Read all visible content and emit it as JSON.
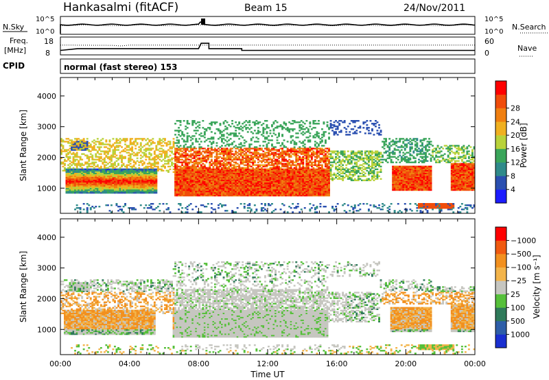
{
  "header": {
    "station": "Hankasalmi (fitACF)",
    "beam": "Beam 15",
    "date": "24/Nov/2011"
  },
  "noise_panel": {
    "left_label": "N.Sky",
    "left_ticks": [
      "10^5",
      "10^0"
    ],
    "right_ticks": [
      "10^5",
      "10^0"
    ],
    "right_label": "N.Search"
  },
  "freq_panel": {
    "left_label_1": "Freq.",
    "left_label_2": "[MHz]",
    "left_ticks": [
      "18",
      "8"
    ],
    "right_ticks": [
      "60",
      "0"
    ],
    "right_label": "Nave",
    "freq_series": [
      [
        0,
        10.5
      ],
      [
        1,
        11.5
      ],
      [
        8,
        11.5
      ],
      [
        8.15,
        14.5
      ],
      [
        8.6,
        14.5
      ],
      [
        8.6,
        11.5
      ],
      [
        10.5,
        11.5
      ],
      [
        10.5,
        10.5
      ],
      [
        24,
        10.5
      ]
    ],
    "nave_series": [
      [
        0,
        33
      ],
      [
        3,
        32
      ],
      [
        3.5,
        30
      ],
      [
        4,
        33
      ],
      [
        24,
        33
      ]
    ]
  },
  "cpid": {
    "label": "CPID",
    "value": "normal (fast stereo) 153"
  },
  "chart_data": [
    {
      "type": "heatmap",
      "title": "",
      "ylabel": "Slant Range [km]",
      "xlabel": "",
      "x_ticks": [
        "00:00",
        "04:00",
        "08:00",
        "12:00",
        "16:00",
        "20:00",
        "00:00"
      ],
      "y_ticks": [
        "1000",
        "2000",
        "3000",
        "4000"
      ],
      "xlim": [
        0,
        24
      ],
      "ylim": [
        180,
        4600
      ],
      "colorbar": {
        "label": "Power [dB]",
        "ticks": [
          "4",
          "8",
          "12",
          "16",
          "20",
          "24",
          "28"
        ],
        "colors": [
          "#1c1cff",
          "#2a4fb0",
          "#2f8a8a",
          "#3aa55a",
          "#b9d23a",
          "#f0b020",
          "#f07f10",
          "#f04c0a",
          "#ff0000"
        ]
      }
    },
    {
      "type": "heatmap",
      "title": "",
      "ylabel": "Slant Range [km]",
      "xlabel": "Time UT",
      "x_ticks": [
        "00:00",
        "04:00",
        "08:00",
        "12:00",
        "16:00",
        "20:00",
        "00:00"
      ],
      "y_ticks": [
        "1000",
        "2000",
        "3000",
        "4000"
      ],
      "xlim": [
        0,
        24
      ],
      "ylim": [
        180,
        4600
      ],
      "colorbar": {
        "label": "Velocity [m s⁻¹]",
        "ticks": [
          "1000",
          "500",
          "100",
          "25",
          "−25",
          "−100",
          "−500",
          "−1000"
        ],
        "colors": [
          "#1a2fd0",
          "#2e5ea8",
          "#2f7a5a",
          "#56c03a",
          "#c6c6c0",
          "#f3b44a",
          "#f2901f",
          "#f05a10",
          "#ff0000"
        ]
      }
    }
  ]
}
